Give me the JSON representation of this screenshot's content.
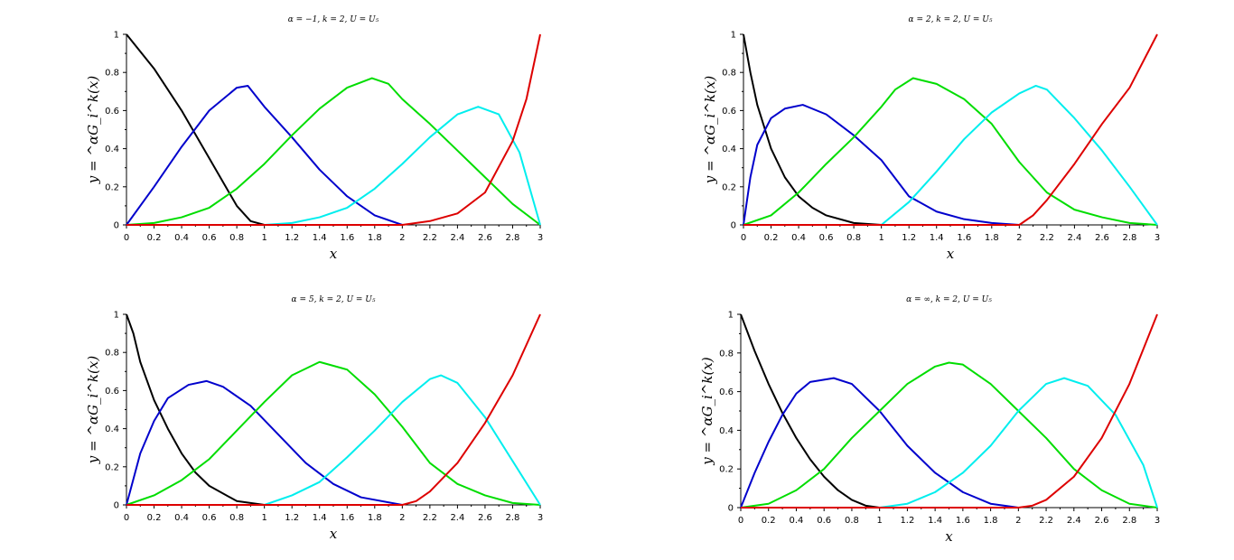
{
  "figure": {
    "background": "#ffffff"
  },
  "chart_data": [
    {
      "type": "line",
      "title": "α = −1, k = 2, U = U₅",
      "xlabel": "x",
      "ylabel": "y = ^αG_i^k(x)",
      "xlim": [
        0,
        3
      ],
      "ylim": [
        0,
        1
      ],
      "xticks": [
        0,
        0.2,
        0.4,
        0.6,
        0.8,
        1,
        1.2,
        1.4,
        1.6,
        1.8,
        2,
        2.2,
        2.4,
        2.6,
        2.8,
        3
      ],
      "yticks": [
        0,
        0.2,
        0.4,
        0.6,
        0.8,
        1
      ],
      "grid": false,
      "legend": "none",
      "series": [
        {
          "color": "#000000",
          "points": [
            [
              0,
              1
            ],
            [
              0.2,
              0.82
            ],
            [
              0.4,
              0.6
            ],
            [
              0.6,
              0.35
            ],
            [
              0.8,
              0.1
            ],
            [
              0.9,
              0.02
            ],
            [
              1,
              0
            ]
          ]
        },
        {
          "color": "#0000cc",
          "points": [
            [
              0,
              0
            ],
            [
              0.2,
              0.2
            ],
            [
              0.4,
              0.41
            ],
            [
              0.6,
              0.6
            ],
            [
              0.8,
              0.72
            ],
            [
              0.88,
              0.73
            ],
            [
              1,
              0.62
            ],
            [
              1.2,
              0.46
            ],
            [
              1.4,
              0.29
            ],
            [
              1.6,
              0.15
            ],
            [
              1.8,
              0.05
            ],
            [
              2,
              0
            ]
          ]
        },
        {
          "color": "#00dd00",
          "points": [
            [
              0,
              0
            ],
            [
              0.2,
              0.01
            ],
            [
              0.4,
              0.04
            ],
            [
              0.6,
              0.09
            ],
            [
              0.8,
              0.19
            ],
            [
              1,
              0.32
            ],
            [
              1.2,
              0.47
            ],
            [
              1.4,
              0.61
            ],
            [
              1.6,
              0.72
            ],
            [
              1.78,
              0.77
            ],
            [
              1.9,
              0.74
            ],
            [
              2,
              0.66
            ],
            [
              2.2,
              0.53
            ],
            [
              2.4,
              0.39
            ],
            [
              2.6,
              0.25
            ],
            [
              2.8,
              0.11
            ],
            [
              3,
              0
            ]
          ]
        },
        {
          "color": "#00eeee",
          "points": [
            [
              1,
              0
            ],
            [
              1.2,
              0.01
            ],
            [
              1.4,
              0.04
            ],
            [
              1.6,
              0.09
            ],
            [
              1.8,
              0.19
            ],
            [
              2,
              0.32
            ],
            [
              2.2,
              0.46
            ],
            [
              2.4,
              0.58
            ],
            [
              2.55,
              0.62
            ],
            [
              2.7,
              0.58
            ],
            [
              2.85,
              0.38
            ],
            [
              3,
              0
            ]
          ]
        },
        {
          "color": "#dd0000",
          "points": [
            [
              0,
              0
            ],
            [
              1,
              0
            ],
            [
              2,
              0
            ],
            [
              2.2,
              0.02
            ],
            [
              2.4,
              0.06
            ],
            [
              2.6,
              0.17
            ],
            [
              2.8,
              0.44
            ],
            [
              2.9,
              0.66
            ],
            [
              3,
              1
            ]
          ]
        }
      ]
    },
    {
      "type": "line",
      "title": "α = 2, k = 2, U = U₅",
      "xlabel": "x",
      "ylabel": "y = ^αG_i^k(x)",
      "xlim": [
        0,
        3
      ],
      "ylim": [
        0,
        1
      ],
      "xticks": [
        0,
        0.2,
        0.4,
        0.6,
        0.8,
        1,
        1.2,
        1.4,
        1.6,
        1.8,
        2,
        2.2,
        2.4,
        2.6,
        2.8,
        3
      ],
      "yticks": [
        0,
        0.2,
        0.4,
        0.6,
        0.8,
        1
      ],
      "grid": false,
      "legend": "none",
      "series": [
        {
          "color": "#000000",
          "points": [
            [
              0,
              1
            ],
            [
              0.05,
              0.8
            ],
            [
              0.1,
              0.63
            ],
            [
              0.2,
              0.4
            ],
            [
              0.3,
              0.25
            ],
            [
              0.4,
              0.15
            ],
            [
              0.5,
              0.09
            ],
            [
              0.6,
              0.05
            ],
            [
              0.8,
              0.01
            ],
            [
              1,
              0
            ]
          ]
        },
        {
          "color": "#0000cc",
          "points": [
            [
              0,
              0
            ],
            [
              0.05,
              0.25
            ],
            [
              0.1,
              0.42
            ],
            [
              0.2,
              0.56
            ],
            [
              0.3,
              0.61
            ],
            [
              0.43,
              0.63
            ],
            [
              0.6,
              0.58
            ],
            [
              0.8,
              0.47
            ],
            [
              1,
              0.34
            ],
            [
              1.2,
              0.15
            ],
            [
              1.4,
              0.07
            ],
            [
              1.6,
              0.03
            ],
            [
              1.8,
              0.01
            ],
            [
              2,
              0
            ]
          ]
        },
        {
          "color": "#00dd00",
          "points": [
            [
              0,
              0
            ],
            [
              0.2,
              0.05
            ],
            [
              0.4,
              0.17
            ],
            [
              0.6,
              0.32
            ],
            [
              0.8,
              0.46
            ],
            [
              1,
              0.62
            ],
            [
              1.1,
              0.71
            ],
            [
              1.23,
              0.77
            ],
            [
              1.4,
              0.74
            ],
            [
              1.6,
              0.66
            ],
            [
              1.8,
              0.53
            ],
            [
              2,
              0.33
            ],
            [
              2.2,
              0.17
            ],
            [
              2.4,
              0.08
            ],
            [
              2.6,
              0.04
            ],
            [
              2.8,
              0.01
            ],
            [
              3,
              0
            ]
          ]
        },
        {
          "color": "#00eeee",
          "points": [
            [
              1,
              0
            ],
            [
              1.2,
              0.12
            ],
            [
              1.4,
              0.28
            ],
            [
              1.6,
              0.45
            ],
            [
              1.8,
              0.59
            ],
            [
              2,
              0.69
            ],
            [
              2.12,
              0.73
            ],
            [
              2.2,
              0.71
            ],
            [
              2.4,
              0.56
            ],
            [
              2.6,
              0.39
            ],
            [
              2.8,
              0.2
            ],
            [
              3,
              0
            ]
          ]
        },
        {
          "color": "#dd0000",
          "points": [
            [
              0,
              0
            ],
            [
              2,
              0
            ],
            [
              2.1,
              0.05
            ],
            [
              2.2,
              0.13
            ],
            [
              2.4,
              0.32
            ],
            [
              2.6,
              0.53
            ],
            [
              2.8,
              0.72
            ],
            [
              3,
              1
            ]
          ]
        }
      ]
    },
    {
      "type": "line",
      "title": "α = 5, k = 2, U = U₅",
      "xlabel": "x",
      "ylabel": "y = ^αG_i^k(x)",
      "xlim": [
        0,
        3
      ],
      "ylim": [
        0,
        1
      ],
      "xticks": [
        0,
        0.2,
        0.4,
        0.6,
        0.8,
        1,
        1.2,
        1.4,
        1.6,
        1.8,
        2,
        2.2,
        2.4,
        2.6,
        2.8,
        3
      ],
      "yticks": [
        0,
        0.2,
        0.4,
        0.6,
        0.8,
        1
      ],
      "grid": false,
      "legend": "none",
      "series": [
        {
          "color": "#000000",
          "points": [
            [
              0,
              1
            ],
            [
              0.05,
              0.9
            ],
            [
              0.1,
              0.75
            ],
            [
              0.2,
              0.55
            ],
            [
              0.3,
              0.4
            ],
            [
              0.4,
              0.27
            ],
            [
              0.5,
              0.17
            ],
            [
              0.6,
              0.1
            ],
            [
              0.8,
              0.02
            ],
            [
              1,
              0
            ]
          ]
        },
        {
          "color": "#0000cc",
          "points": [
            [
              0,
              0
            ],
            [
              0.1,
              0.27
            ],
            [
              0.2,
              0.44
            ],
            [
              0.3,
              0.56
            ],
            [
              0.45,
              0.63
            ],
            [
              0.58,
              0.65
            ],
            [
              0.7,
              0.62
            ],
            [
              0.9,
              0.52
            ],
            [
              1.1,
              0.37
            ],
            [
              1.3,
              0.22
            ],
            [
              1.5,
              0.11
            ],
            [
              1.7,
              0.04
            ],
            [
              2,
              0
            ]
          ]
        },
        {
          "color": "#00dd00",
          "points": [
            [
              0,
              0
            ],
            [
              0.2,
              0.05
            ],
            [
              0.4,
              0.13
            ],
            [
              0.6,
              0.24
            ],
            [
              0.8,
              0.39
            ],
            [
              1,
              0.54
            ],
            [
              1.2,
              0.68
            ],
            [
              1.4,
              0.75
            ],
            [
              1.6,
              0.71
            ],
            [
              1.8,
              0.58
            ],
            [
              2,
              0.41
            ],
            [
              2.2,
              0.22
            ],
            [
              2.4,
              0.11
            ],
            [
              2.6,
              0.05
            ],
            [
              2.8,
              0.01
            ],
            [
              3,
              0
            ]
          ]
        },
        {
          "color": "#00eeee",
          "points": [
            [
              1,
              0
            ],
            [
              1.2,
              0.05
            ],
            [
              1.4,
              0.12
            ],
            [
              1.6,
              0.25
            ],
            [
              1.8,
              0.39
            ],
            [
              2,
              0.54
            ],
            [
              2.2,
              0.66
            ],
            [
              2.28,
              0.68
            ],
            [
              2.4,
              0.64
            ],
            [
              2.6,
              0.46
            ],
            [
              2.8,
              0.23
            ],
            [
              3,
              0
            ]
          ]
        },
        {
          "color": "#dd0000",
          "points": [
            [
              0,
              0
            ],
            [
              2,
              0
            ],
            [
              2.1,
              0.02
            ],
            [
              2.2,
              0.07
            ],
            [
              2.4,
              0.22
            ],
            [
              2.6,
              0.43
            ],
            [
              2.8,
              0.68
            ],
            [
              3,
              1
            ]
          ]
        }
      ]
    },
    {
      "type": "line",
      "title": "α = ∞, k = 2, U = U₅",
      "xlabel": "x",
      "ylabel": "y = ^αG_i^k(x)",
      "xlim": [
        0,
        3
      ],
      "ylim": [
        0,
        1
      ],
      "xticks": [
        0,
        0.2,
        0.4,
        0.6,
        0.8,
        1,
        1.2,
        1.4,
        1.6,
        1.8,
        2,
        2.2,
        2.4,
        2.6,
        2.8,
        3
      ],
      "yticks": [
        0,
        0.2,
        0.4,
        0.6,
        0.8,
        1
      ],
      "grid": false,
      "legend": "none",
      "series": [
        {
          "color": "#000000",
          "points": [
            [
              0,
              1
            ],
            [
              0.1,
              0.81
            ],
            [
              0.2,
              0.64
            ],
            [
              0.3,
              0.49
            ],
            [
              0.4,
              0.36
            ],
            [
              0.5,
              0.25
            ],
            [
              0.6,
              0.16
            ],
            [
              0.7,
              0.09
            ],
            [
              0.8,
              0.04
            ],
            [
              0.9,
              0.01
            ],
            [
              1,
              0
            ]
          ]
        },
        {
          "color": "#0000cc",
          "points": [
            [
              0,
              0
            ],
            [
              0.1,
              0.18
            ],
            [
              0.2,
              0.34
            ],
            [
              0.3,
              0.48
            ],
            [
              0.4,
              0.59
            ],
            [
              0.5,
              0.65
            ],
            [
              0.67,
              0.67
            ],
            [
              0.8,
              0.64
            ],
            [
              1,
              0.5
            ],
            [
              1.2,
              0.32
            ],
            [
              1.4,
              0.18
            ],
            [
              1.6,
              0.08
            ],
            [
              1.8,
              0.02
            ],
            [
              2,
              0
            ]
          ]
        },
        {
          "color": "#00dd00",
          "points": [
            [
              0,
              0
            ],
            [
              0.2,
              0.02
            ],
            [
              0.4,
              0.09
            ],
            [
              0.6,
              0.2
            ],
            [
              0.8,
              0.36
            ],
            [
              1,
              0.5
            ],
            [
              1.2,
              0.64
            ],
            [
              1.4,
              0.73
            ],
            [
              1.5,
              0.75
            ],
            [
              1.6,
              0.74
            ],
            [
              1.8,
              0.64
            ],
            [
              2,
              0.5
            ],
            [
              2.2,
              0.36
            ],
            [
              2.4,
              0.2
            ],
            [
              2.6,
              0.09
            ],
            [
              2.8,
              0.02
            ],
            [
              3,
              0
            ]
          ]
        },
        {
          "color": "#00eeee",
          "points": [
            [
              1,
              0
            ],
            [
              1.2,
              0.02
            ],
            [
              1.4,
              0.08
            ],
            [
              1.6,
              0.18
            ],
            [
              1.8,
              0.32
            ],
            [
              2,
              0.5
            ],
            [
              2.2,
              0.64
            ],
            [
              2.33,
              0.67
            ],
            [
              2.5,
              0.63
            ],
            [
              2.7,
              0.48
            ],
            [
              2.9,
              0.22
            ],
            [
              3,
              0
            ]
          ]
        },
        {
          "color": "#dd0000",
          "points": [
            [
              0,
              0
            ],
            [
              2,
              0
            ],
            [
              2.1,
              0.01
            ],
            [
              2.2,
              0.04
            ],
            [
              2.4,
              0.16
            ],
            [
              2.6,
              0.36
            ],
            [
              2.8,
              0.64
            ],
            [
              3,
              1
            ]
          ]
        }
      ]
    }
  ]
}
